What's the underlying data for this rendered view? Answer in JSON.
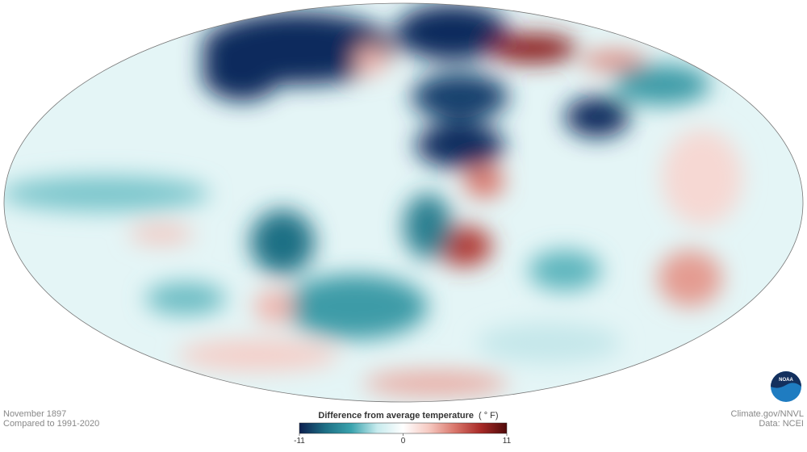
{
  "map": {
    "date": "November 1897",
    "baseline": "Compared to 1991-2020",
    "credit": "Climate.gov/NNVL",
    "source": "Data: NCEI",
    "logo": "NOAA"
  },
  "legend": {
    "title": "Difference from average temperature",
    "unit": "( ° F)",
    "range": [
      -11,
      11
    ],
    "ticks": [
      -11,
      0,
      11
    ],
    "colors": [
      "#0c1f4f",
      "#1d6f85",
      "#3aa3ad",
      "#c7ebee",
      "#ffffff",
      "#f6c9c1",
      "#d9766b",
      "#a82a27",
      "#4f0a0a"
    ]
  }
}
